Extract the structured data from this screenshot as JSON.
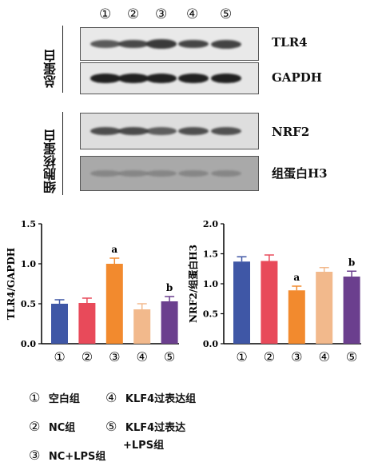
{
  "lanes": [
    "①",
    "②",
    "③",
    "④",
    "⑤"
  ],
  "blot_group_labels": {
    "total": "总蛋白",
    "nuclear": "细胞核蛋白"
  },
  "blots": [
    {
      "label": "TLR4",
      "bg": "#e9e9e9",
      "band_color": "#2b2b2b",
      "intensities": [
        0.62,
        0.75,
        0.88,
        0.78,
        0.8
      ]
    },
    {
      "label": "GAPDH",
      "bg": "#e6e6e6",
      "band_color": "#151515",
      "intensities": [
        0.9,
        0.9,
        0.9,
        0.9,
        0.9
      ]
    },
    {
      "label": "NRF2",
      "bg": "#dedede",
      "band_color": "#2a2a2a",
      "intensities": [
        0.7,
        0.72,
        0.55,
        0.68,
        0.66
      ]
    },
    {
      "label": "组蛋白H3",
      "bg": "#a9a9a9",
      "band_color": "#6e6e6e",
      "intensities": [
        0.35,
        0.35,
        0.35,
        0.35,
        0.35
      ]
    }
  ],
  "colors": {
    "g1": "#3f57a6",
    "g2": "#e84a5a",
    "g3": "#f28a2e",
    "g4": "#f2b98c",
    "g5": "#6b3f8e"
  },
  "chart_data": [
    {
      "type": "bar",
      "categories": [
        "①",
        "②",
        "③",
        "④",
        "⑤"
      ],
      "values": [
        0.5,
        0.51,
        1.0,
        0.43,
        0.53
      ],
      "errors": [
        0.05,
        0.06,
        0.07,
        0.07,
        0.06
      ],
      "annotations": [
        "",
        "",
        "a",
        "",
        "b"
      ],
      "ylabel": "TLR4/GAPDH",
      "ylim": [
        0,
        1.5
      ],
      "yticks": [
        "0.0",
        "0.5",
        "1.0",
        "1.5"
      ]
    },
    {
      "type": "bar",
      "categories": [
        "①",
        "②",
        "③",
        "④",
        "⑤"
      ],
      "values": [
        1.37,
        1.38,
        0.89,
        1.2,
        1.12
      ],
      "errors": [
        0.08,
        0.1,
        0.07,
        0.07,
        0.09
      ],
      "annotations": [
        "",
        "",
        "a",
        "",
        "b"
      ],
      "ylabel": "NRF2/组蛋白H3",
      "ylim": [
        0,
        2.0
      ],
      "yticks": [
        "0.0",
        "0.5",
        "1.0",
        "1.5",
        "2.0"
      ]
    }
  ],
  "legend": [
    {
      "num": "①",
      "text": "空白组"
    },
    {
      "num": "②",
      "text": "NC组"
    },
    {
      "num": "③",
      "text": "NC+LPS组"
    },
    {
      "num": "④",
      "text": "KLF4过表达组"
    },
    {
      "num": "⑤",
      "text": "KLF4过表达"
    },
    {
      "text": "+LPS组"
    }
  ]
}
